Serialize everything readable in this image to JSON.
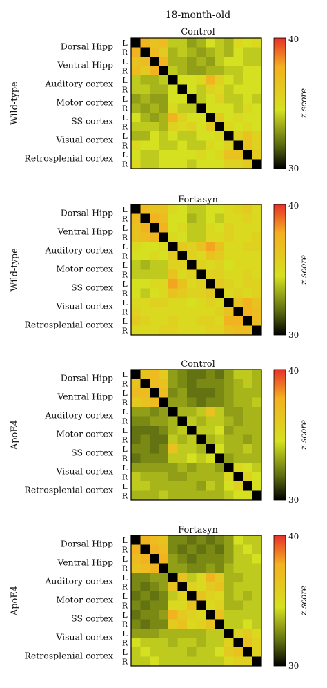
{
  "figure": {
    "title": "18-month-old"
  },
  "colorbar": {
    "label": "z-score",
    "max_label": "40",
    "min_label": "30",
    "colors": [
      "#000000",
      "#5a6a10",
      "#d5e020",
      "#f4b020",
      "#e8302a"
    ]
  },
  "chart_data": [
    {
      "type": "heatmap",
      "title": "Control",
      "ylabel": "Wild-type",
      "row_labels": [
        "Dorsal Hipp",
        "Ventral Hipp",
        "Auditory cortex",
        "Motor cortex",
        "SS cortex",
        "Visual cortex",
        "Retrosplenial cortex"
      ],
      "hemispheres": [
        "L",
        "R"
      ],
      "colorbar": {
        "min": 30,
        "max": 40
      },
      "values": [
        [
          30,
          37.5,
          36.5,
          37.0,
          34.0,
          34.0,
          33.0,
          33.5,
          34.5,
          34.0,
          33.5,
          35.0,
          34.5,
          35.0
        ],
        [
          37.5,
          30,
          37.0,
          36.0,
          33.5,
          34.0,
          33.5,
          33.0,
          33.5,
          34.0,
          33.5,
          34.5,
          34.0,
          34.0
        ],
        [
          36.5,
          37.0,
          30,
          37.5,
          33.5,
          33.5,
          33.0,
          33.5,
          33.0,
          34.0,
          34.5,
          34.5,
          34.0,
          34.0
        ],
        [
          37.0,
          36.0,
          37.5,
          30,
          34.0,
          33.5,
          33.0,
          33.0,
          33.5,
          33.5,
          34.0,
          34.0,
          34.5,
          34.5
        ],
        [
          34.0,
          33.5,
          33.5,
          34.0,
          30,
          34.5,
          34.5,
          35.0,
          37.5,
          35.5,
          34.5,
          34.0,
          34.5,
          34.5
        ],
        [
          34.0,
          34.0,
          33.5,
          33.5,
          34.5,
          30,
          34.5,
          34.0,
          35.5,
          35.0,
          34.0,
          34.5,
          34.5,
          34.5
        ],
        [
          33.0,
          33.5,
          33.0,
          33.0,
          34.5,
          34.5,
          30,
          34.0,
          34.5,
          35.5,
          34.0,
          34.0,
          34.5,
          34.0
        ],
        [
          33.5,
          33.0,
          33.5,
          33.0,
          35.0,
          34.0,
          34.0,
          30,
          34.5,
          34.5,
          34.5,
          34.0,
          35.0,
          34.5
        ],
        [
          34.5,
          33.5,
          33.0,
          33.5,
          37.5,
          35.5,
          34.5,
          34.5,
          30,
          36.0,
          34.5,
          35.0,
          34.5,
          34.5
        ],
        [
          34.0,
          34.0,
          34.0,
          33.5,
          35.5,
          35.0,
          35.5,
          34.5,
          36.0,
          30,
          35.0,
          34.5,
          35.0,
          34.5
        ],
        [
          33.5,
          33.5,
          34.5,
          34.0,
          34.5,
          34.0,
          34.0,
          34.5,
          34.5,
          35.0,
          30,
          35.5,
          36.5,
          35.5
        ],
        [
          35.0,
          34.5,
          34.5,
          34.0,
          34.0,
          34.5,
          34.0,
          34.0,
          35.0,
          34.5,
          35.5,
          30,
          36.5,
          35.5
        ],
        [
          34.5,
          34.0,
          34.0,
          34.5,
          34.5,
          34.5,
          34.5,
          35.0,
          34.5,
          35.0,
          36.5,
          36.5,
          30,
          36.0
        ],
        [
          35.0,
          34.0,
          34.0,
          34.5,
          34.5,
          34.5,
          34.0,
          34.5,
          34.5,
          34.5,
          35.5,
          35.5,
          36.0,
          30
        ]
      ]
    },
    {
      "type": "heatmap",
      "title": "Fortasyn",
      "ylabel": "Wild-type",
      "row_labels": [
        "Dorsal Hipp",
        "Ventral Hipp",
        "Auditory cortex",
        "Motor cortex",
        "SS cortex",
        "Visual cortex",
        "Retrosplenial cortex"
      ],
      "hemispheres": [
        "L",
        "R"
      ],
      "colorbar": {
        "min": 30,
        "max": 40
      },
      "values": [
        [
          30,
          37.0,
          36.5,
          36.5,
          35.0,
          34.5,
          34.0,
          34.0,
          34.5,
          34.5,
          35.0,
          35.5,
          36.0,
          35.0
        ],
        [
          37.0,
          30,
          37.5,
          37.0,
          34.5,
          34.5,
          33.5,
          34.0,
          34.5,
          34.0,
          35.0,
          35.0,
          35.5,
          35.0
        ],
        [
          36.5,
          37.5,
          30,
          37.5,
          34.5,
          35.0,
          34.0,
          34.0,
          35.0,
          34.5,
          35.5,
          35.0,
          35.0,
          35.0
        ],
        [
          36.5,
          37.0,
          37.5,
          30,
          35.0,
          34.5,
          34.0,
          34.0,
          35.0,
          35.0,
          35.5,
          35.0,
          35.0,
          35.5
        ],
        [
          35.0,
          34.5,
          34.5,
          35.0,
          30,
          36.0,
          35.5,
          36.5,
          38.0,
          36.5,
          35.0,
          35.0,
          35.5,
          35.5
        ],
        [
          34.5,
          34.5,
          35.0,
          34.5,
          36.0,
          30,
          35.5,
          35.0,
          36.5,
          36.0,
          35.0,
          35.0,
          35.0,
          35.0
        ],
        [
          34.0,
          33.5,
          34.0,
          34.0,
          35.5,
          35.5,
          30,
          35.5,
          35.0,
          35.5,
          34.5,
          35.0,
          35.0,
          35.0
        ],
        [
          34.0,
          34.0,
          34.0,
          34.0,
          36.5,
          35.0,
          35.5,
          30,
          35.5,
          35.5,
          35.0,
          35.0,
          35.5,
          35.0
        ],
        [
          34.5,
          34.5,
          35.0,
          35.0,
          38.0,
          36.5,
          35.0,
          35.5,
          30,
          36.0,
          35.5,
          35.0,
          35.5,
          35.5
        ],
        [
          34.5,
          34.0,
          34.5,
          35.0,
          36.5,
          36.0,
          35.5,
          35.5,
          36.0,
          30,
          35.0,
          35.5,
          35.0,
          35.5
        ],
        [
          35.0,
          35.0,
          35.5,
          35.5,
          35.0,
          35.0,
          34.5,
          35.0,
          35.5,
          35.0,
          30,
          36.5,
          37.5,
          36.5
        ],
        [
          35.5,
          35.0,
          35.0,
          35.0,
          35.0,
          35.0,
          35.0,
          35.0,
          35.0,
          35.5,
          36.5,
          30,
          37.5,
          37.0
        ],
        [
          36.0,
          35.5,
          35.0,
          35.0,
          35.5,
          35.0,
          35.0,
          35.5,
          35.5,
          35.0,
          37.5,
          37.5,
          30,
          37.0
        ],
        [
          35.0,
          35.0,
          35.0,
          35.5,
          35.5,
          35.0,
          35.0,
          35.0,
          35.5,
          35.5,
          36.5,
          37.0,
          37.0,
          30
        ]
      ]
    },
    {
      "type": "heatmap",
      "title": "Control",
      "ylabel": "ApoE4",
      "row_labels": [
        "Dorsal Hipp",
        "Ventral Hipp",
        "Auditory cortex",
        "Motor cortex",
        "SS cortex",
        "Visual cortex",
        "Retrosplenial cortex"
      ],
      "hemispheres": [
        "L",
        "R"
      ],
      "colorbar": {
        "min": 30,
        "max": 40
      },
      "values": [
        [
          30,
          36.5,
          37.0,
          36.0,
          33.0,
          32.5,
          32.0,
          32.0,
          32.5,
          32.0,
          33.0,
          34.0,
          34.0,
          33.5
        ],
        [
          36.5,
          30,
          37.0,
          36.5,
          33.0,
          32.5,
          32.0,
          32.5,
          32.5,
          32.5,
          33.0,
          33.5,
          34.0,
          33.5
        ],
        [
          37.0,
          37.0,
          30,
          37.0,
          32.5,
          33.0,
          32.0,
          32.0,
          32.0,
          32.5,
          33.0,
          33.5,
          33.5,
          33.5
        ],
        [
          36.0,
          36.5,
          37.0,
          30,
          33.0,
          33.0,
          32.5,
          32.0,
          32.5,
          32.5,
          33.0,
          33.5,
          33.5,
          34.0
        ],
        [
          33.0,
          33.0,
          32.5,
          33.0,
          30,
          33.5,
          33.5,
          34.0,
          36.5,
          34.0,
          33.0,
          33.0,
          33.5,
          33.5
        ],
        [
          32.5,
          32.5,
          33.0,
          33.0,
          33.5,
          30,
          34.0,
          33.5,
          34.0,
          34.0,
          33.5,
          33.0,
          33.5,
          33.5
        ],
        [
          32.0,
          32.0,
          32.0,
          32.5,
          33.5,
          34.0,
          30,
          34.0,
          34.0,
          34.5,
          33.0,
          33.5,
          33.5,
          33.5
        ],
        [
          32.0,
          32.5,
          32.0,
          32.0,
          34.0,
          33.5,
          34.0,
          30,
          33.5,
          34.0,
          33.5,
          33.5,
          33.0,
          33.5
        ],
        [
          32.5,
          32.5,
          32.0,
          32.5,
          36.5,
          34.0,
          34.0,
          33.5,
          30,
          34.5,
          33.5,
          33.5,
          34.0,
          33.5
        ],
        [
          32.0,
          32.5,
          32.5,
          32.5,
          34.0,
          34.0,
          34.5,
          34.0,
          34.5,
          30,
          33.0,
          33.5,
          33.5,
          33.5
        ],
        [
          33.0,
          33.0,
          33.0,
          33.0,
          33.0,
          33.5,
          33.0,
          33.5,
          33.5,
          33.0,
          30,
          35.0,
          34.5,
          34.0
        ],
        [
          34.0,
          33.5,
          33.5,
          33.5,
          33.0,
          33.0,
          33.5,
          33.5,
          33.5,
          33.5,
          35.0,
          30,
          35.5,
          34.5
        ],
        [
          34.0,
          34.0,
          33.5,
          33.5,
          33.5,
          33.5,
          33.5,
          33.0,
          34.0,
          33.5,
          34.5,
          35.5,
          30,
          34.5
        ],
        [
          33.5,
          33.5,
          33.5,
          34.0,
          33.5,
          33.5,
          33.5,
          33.5,
          33.5,
          33.5,
          34.0,
          34.5,
          34.5,
          30
        ]
      ]
    },
    {
      "type": "heatmap",
      "title": "Fortasyn",
      "ylabel": "ApoE4",
      "row_labels": [
        "Dorsal Hipp",
        "Ventral Hipp",
        "Auditory cortex",
        "Motor cortex",
        "SS cortex",
        "Visual cortex",
        "Retrosplenial cortex"
      ],
      "hemispheres": [
        "L",
        "R"
      ],
      "colorbar": {
        "min": 30,
        "max": 40
      },
      "values": [
        [
          30,
          37.5,
          37.0,
          36.5,
          32.5,
          32.5,
          32.0,
          32.5,
          32.0,
          32.5,
          33.0,
          34.5,
          34.0,
          34.0
        ],
        [
          37.5,
          30,
          37.5,
          37.0,
          32.5,
          32.0,
          32.5,
          32.0,
          32.5,
          32.0,
          33.0,
          34.0,
          34.5,
          34.0
        ],
        [
          37.0,
          37.5,
          30,
          37.5,
          33.0,
          32.5,
          32.0,
          32.5,
          32.5,
          32.5,
          33.0,
          34.0,
          34.0,
          34.5
        ],
        [
          36.5,
          37.0,
          37.5,
          30,
          33.0,
          33.0,
          32.5,
          32.5,
          33.0,
          32.5,
          33.5,
          34.0,
          34.0,
          34.0
        ],
        [
          32.5,
          32.5,
          33.0,
          33.0,
          30,
          36.5,
          34.0,
          35.0,
          37.5,
          36.0,
          33.5,
          33.5,
          34.0,
          34.0
        ],
        [
          32.5,
          32.0,
          32.5,
          33.0,
          36.5,
          30,
          35.5,
          35.0,
          36.0,
          36.5,
          33.5,
          34.0,
          34.0,
          34.0
        ],
        [
          32.0,
          32.5,
          32.0,
          32.5,
          34.0,
          35.5,
          30,
          36.5,
          35.5,
          35.0,
          33.5,
          34.0,
          33.5,
          34.0
        ],
        [
          32.5,
          32.0,
          32.5,
          32.5,
          35.0,
          35.0,
          36.5,
          30,
          35.0,
          35.5,
          33.5,
          33.5,
          34.0,
          34.0
        ],
        [
          32.0,
          32.5,
          32.5,
          33.0,
          37.5,
          36.0,
          35.5,
          35.0,
          30,
          36.5,
          34.0,
          34.0,
          34.0,
          34.0
        ],
        [
          32.5,
          32.0,
          32.5,
          32.5,
          36.0,
          36.5,
          35.0,
          35.5,
          36.5,
          30,
          34.0,
          34.0,
          34.5,
          34.0
        ],
        [
          33.0,
          33.0,
          33.0,
          33.5,
          33.5,
          33.5,
          33.5,
          33.5,
          34.0,
          34.0,
          30,
          35.5,
          36.0,
          35.0
        ],
        [
          34.5,
          34.0,
          34.0,
          34.0,
          33.5,
          34.0,
          34.0,
          33.5,
          34.0,
          34.0,
          35.5,
          30,
          36.5,
          35.5
        ],
        [
          34.0,
          34.5,
          34.0,
          34.0,
          34.0,
          34.0,
          33.5,
          34.0,
          34.0,
          34.5,
          36.0,
          36.5,
          30,
          35.5
        ],
        [
          34.0,
          34.0,
          34.5,
          34.0,
          34.0,
          34.0,
          34.0,
          34.0,
          34.0,
          34.0,
          35.0,
          35.5,
          35.5,
          30
        ]
      ]
    }
  ]
}
